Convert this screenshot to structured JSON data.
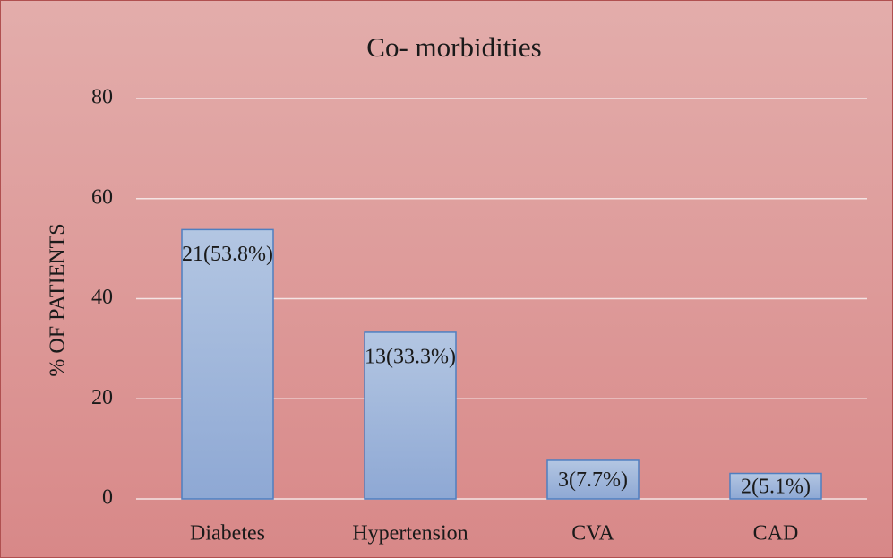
{
  "chart_data": {
    "type": "bar",
    "title": "Co- morbidities",
    "y_label": "% OF PATIENTS",
    "categories": [
      "Diabetes",
      "Hypertension",
      "CVA",
      "CAD"
    ],
    "values": [
      53.8,
      33.3,
      7.7,
      5.1
    ],
    "value_labels": [
      "21(53.8%)",
      "13(33.3%)",
      "3(7.7%)",
      "2(5.1%)"
    ],
    "color": "#9fb6dc",
    "ylim": [
      0,
      80
    ],
    "yticks": [
      0,
      20,
      40,
      60,
      80
    ],
    "grid": true
  }
}
